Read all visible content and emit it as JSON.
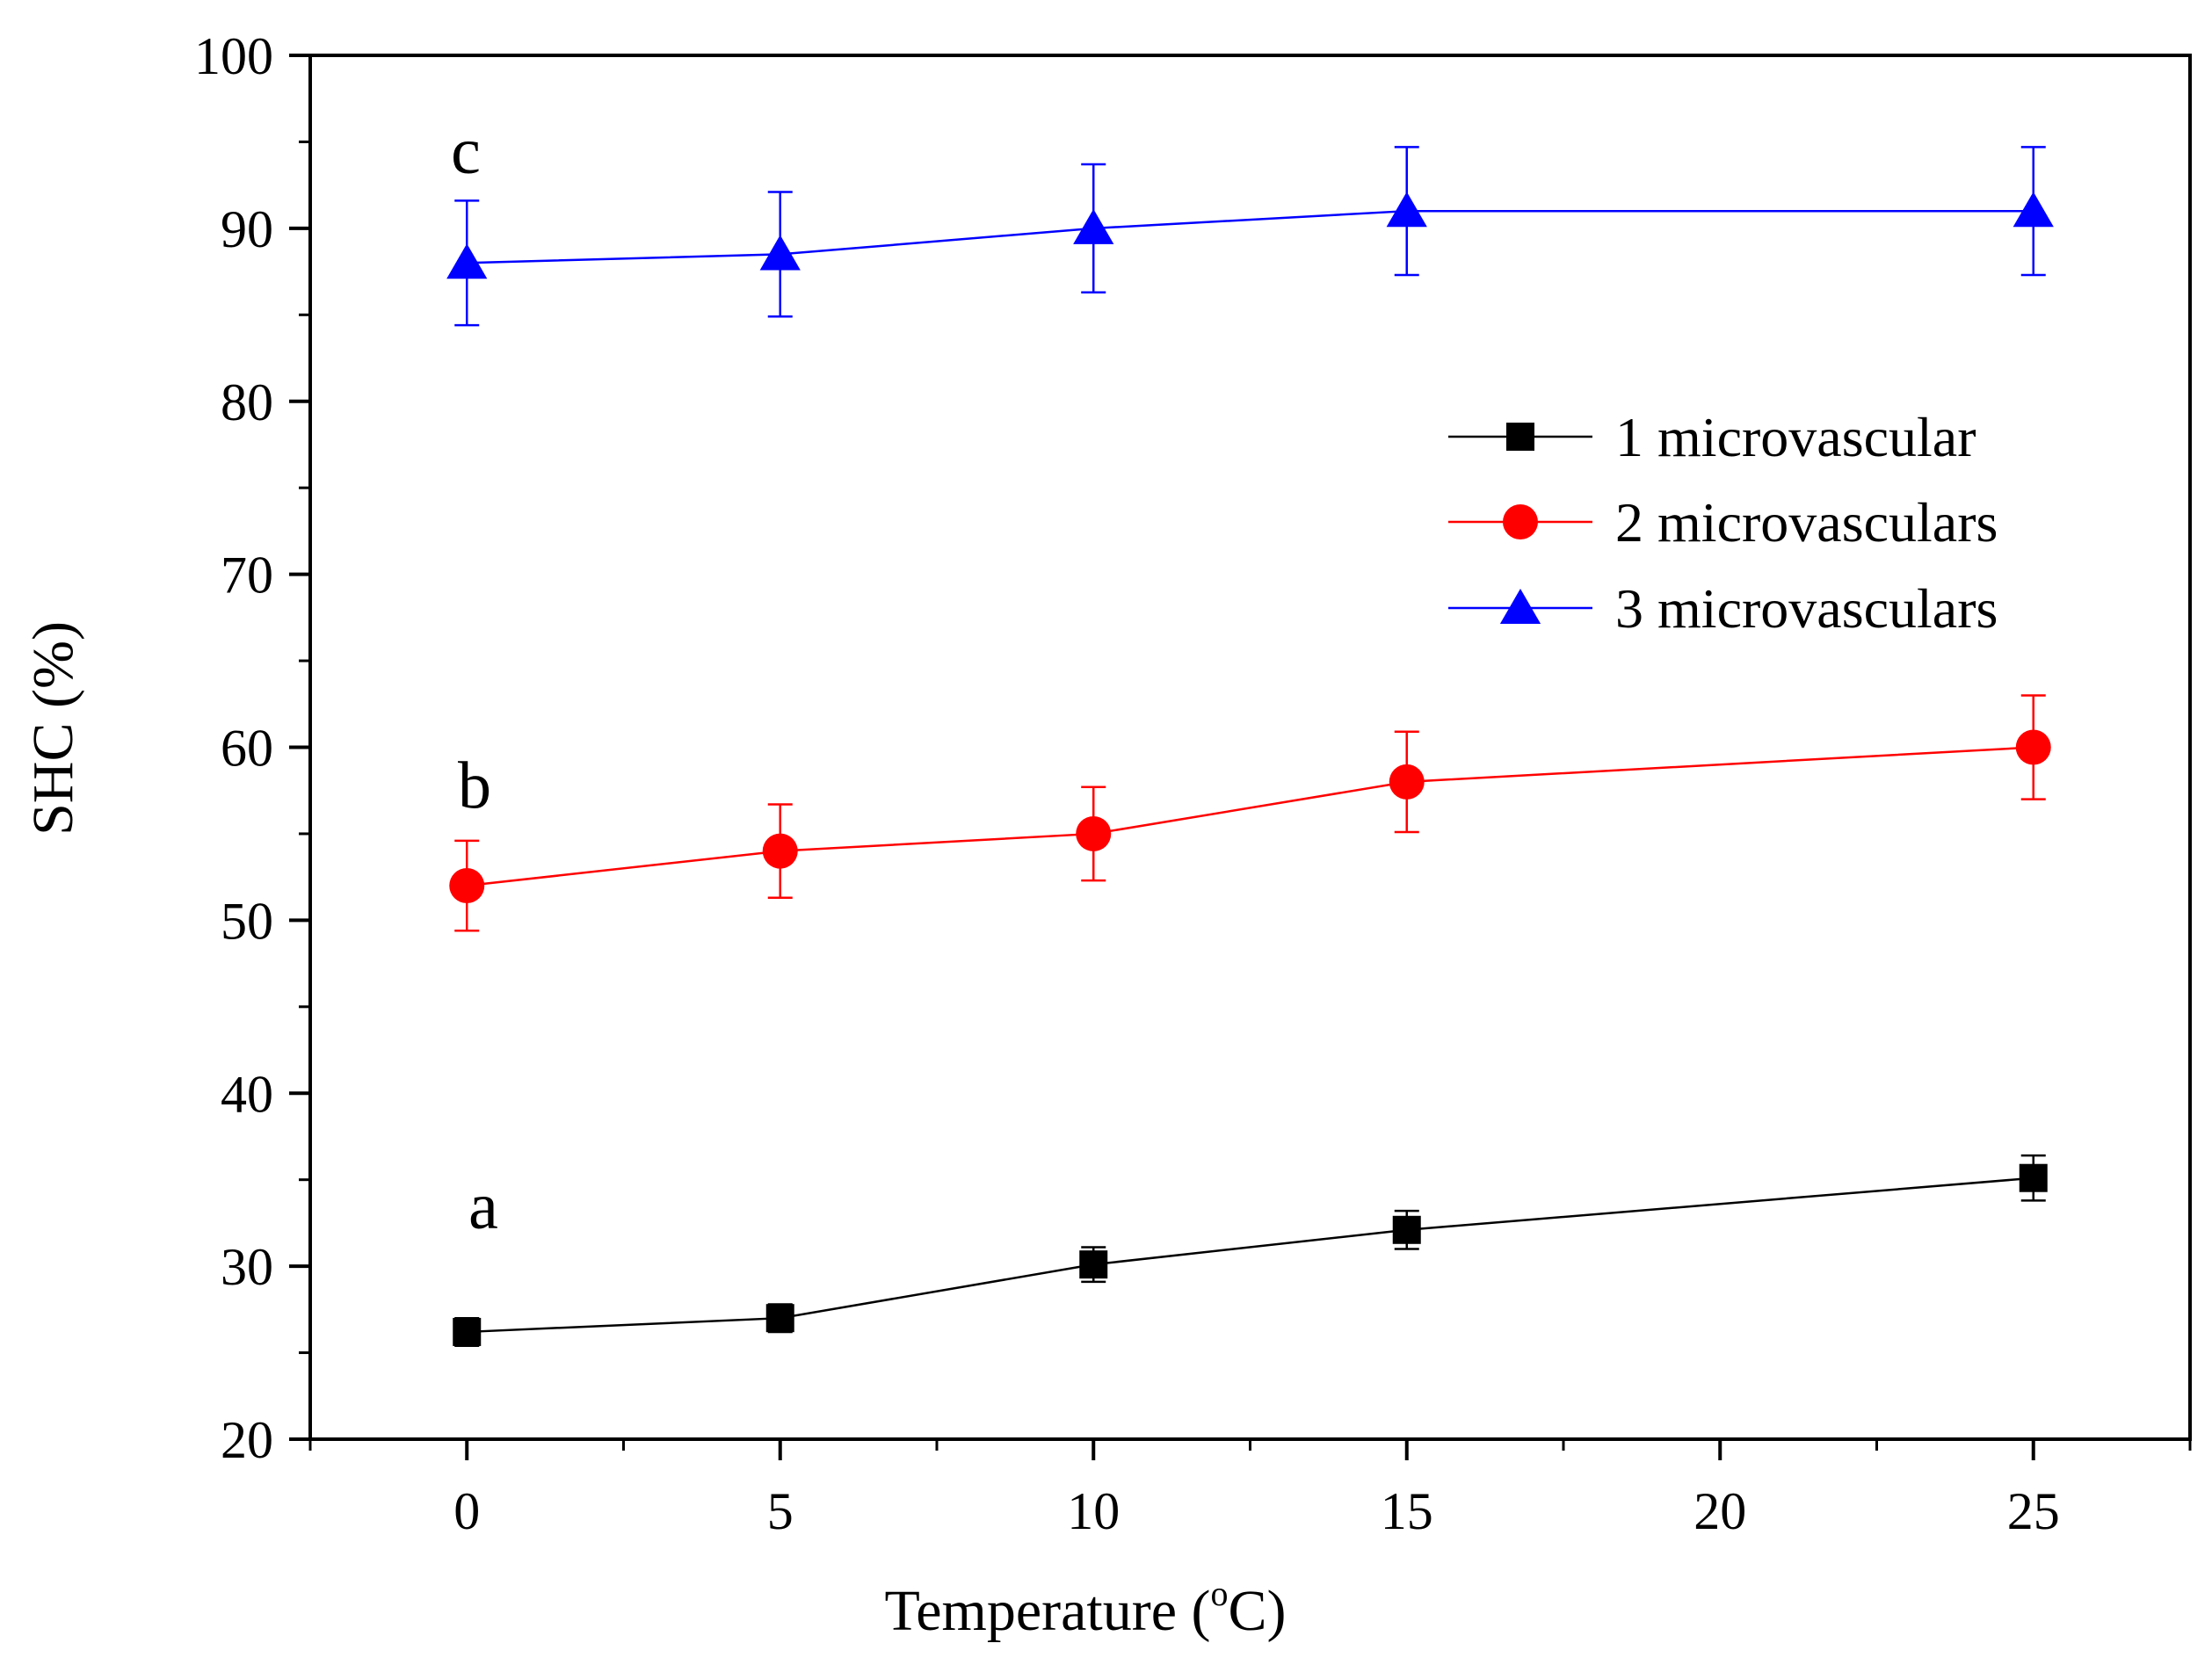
{
  "chart_data": {
    "type": "line",
    "title": "",
    "xlabel": "Temperature",
    "xlabel_unit_open": " (",
    "xlabel_unit_sup": "o",
    "xlabel_unit_rest": "C)",
    "ylabel": "SHC (%)",
    "xlim": [
      -2.5,
      27.5
    ],
    "ylim": [
      20,
      100
    ],
    "xticks": [
      0,
      5,
      10,
      15,
      20,
      25
    ],
    "yticks": [
      20,
      30,
      40,
      50,
      60,
      70,
      80,
      90,
      100
    ],
    "legend_position": "center-right",
    "series": [
      {
        "name": "1 microvascular",
        "color": "#000000",
        "marker": "square",
        "x": [
          0,
          5,
          10,
          15,
          25
        ],
        "values": [
          26.2,
          27.0,
          30.1,
          32.1,
          35.1
        ],
        "errors": [
          0.8,
          0.8,
          1.0,
          1.1,
          1.3
        ],
        "annotation": "a"
      },
      {
        "name": "2 microvasculars",
        "color": "#ff0000",
        "marker": "circle",
        "x": [
          0,
          5,
          10,
          15,
          25
        ],
        "values": [
          52.0,
          54.0,
          55.0,
          58.0,
          60.0
        ],
        "errors": [
          2.6,
          2.7,
          2.7,
          2.9,
          3.0
        ],
        "annotation": "b"
      },
      {
        "name": "3 microvasculars",
        "color": "#0000ff",
        "marker": "triangle",
        "x": [
          0,
          5,
          10,
          15,
          25
        ],
        "values": [
          88.0,
          88.5,
          90.0,
          91.0,
          91.0
        ],
        "errors": [
          3.6,
          3.6,
          3.7,
          3.7,
          3.7
        ],
        "annotation": "c"
      }
    ]
  }
}
